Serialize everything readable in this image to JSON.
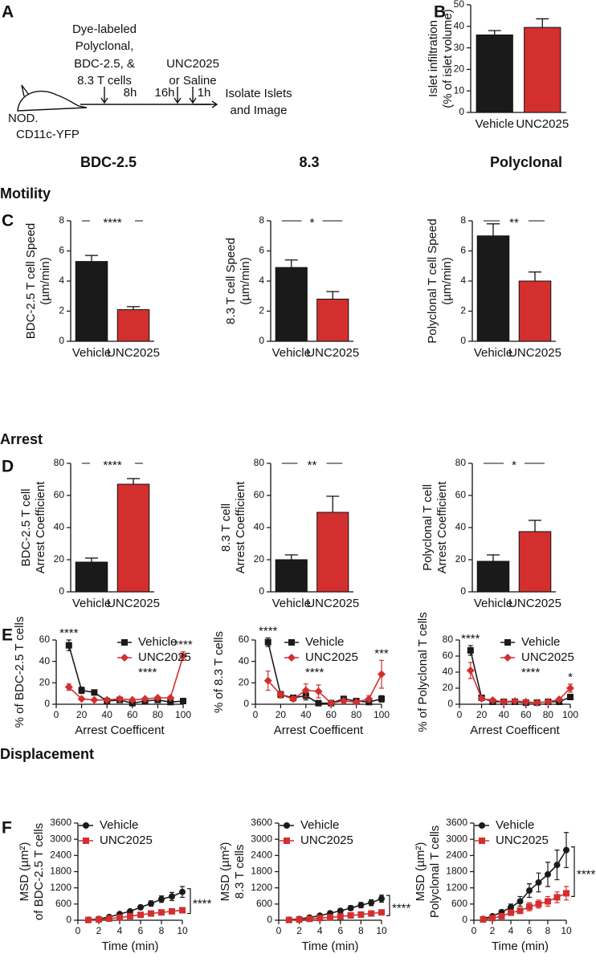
{
  "panel_labels": [
    "A",
    "B",
    "C",
    "D",
    "E",
    "F"
  ],
  "diagram": {
    "cells_label": [
      "Dye-labeled",
      "Polyclonal,",
      "BDC-2.5, &",
      "8.3 T cells"
    ],
    "treatment": [
      "UNC2025",
      "or Saline"
    ],
    "intervals": [
      "8h",
      "16h",
      "1h"
    ],
    "endpoint": [
      "Isolate Islets",
      "and Image"
    ],
    "mouse": [
      "NOD.",
      "CD11c-YFP"
    ]
  },
  "column_headers": [
    "BDC-2.5",
    "8.3",
    "Polyclonal"
  ],
  "section_labels": [
    "Motility",
    "Arrest",
    "Displacement"
  ],
  "chart_data": [
    {
      "type": "bar",
      "ylabel": [
        "Islet infiltration",
        "(% of islet volume)"
      ],
      "categories": [
        "Vehicle",
        "UNC2025"
      ],
      "values": [
        36,
        39.5
      ],
      "errors": [
        2,
        4
      ],
      "colors": [
        "#1a1a1a",
        "#d32f2f"
      ],
      "ylim": [
        0,
        50
      ],
      "yticks": [
        0,
        10,
        20,
        30,
        40,
        50
      ]
    },
    {
      "type": "bar",
      "ylabel": [
        "BDC-2.5 T cell Speed",
        "(µm/min)"
      ],
      "categories": [
        "Vehicle",
        "UNC2025"
      ],
      "values": [
        5.3,
        2.1
      ],
      "errors": [
        0.4,
        0.2
      ],
      "colors": [
        "#1a1a1a",
        "#d32f2f"
      ],
      "ylim": [
        0,
        8
      ],
      "yticks": [
        0,
        2,
        4,
        6,
        8
      ],
      "significance": "****"
    },
    {
      "type": "bar",
      "ylabel": [
        "8.3 T cell Speed",
        "(µm/min)"
      ],
      "categories": [
        "Vehicle",
        "UNC2025"
      ],
      "values": [
        4.9,
        2.8
      ],
      "errors": [
        0.5,
        0.5
      ],
      "colors": [
        "#1a1a1a",
        "#d32f2f"
      ],
      "ylim": [
        0,
        8
      ],
      "yticks": [
        0,
        2,
        4,
        6,
        8
      ],
      "significance": "*"
    },
    {
      "type": "bar",
      "ylabel": [
        "Polyclonal T cell Speed",
        "(µm/min)"
      ],
      "categories": [
        "Vehicle",
        "UNC2025"
      ],
      "values": [
        7.0,
        4.0
      ],
      "errors": [
        0.8,
        0.6
      ],
      "colors": [
        "#1a1a1a",
        "#d32f2f"
      ],
      "ylim": [
        0,
        8
      ],
      "yticks": [
        0,
        2,
        4,
        6,
        8
      ],
      "significance": "**"
    },
    {
      "type": "bar",
      "ylabel": [
        "BDC-2.5 T cell",
        "Arrest Coefficient"
      ],
      "categories": [
        "Vehicle",
        "UNC2025"
      ],
      "values": [
        18.5,
        67
      ],
      "errors": [
        2.5,
        3.5
      ],
      "colors": [
        "#1a1a1a",
        "#d32f2f"
      ],
      "ylim": [
        0,
        80
      ],
      "yticks": [
        0,
        20,
        40,
        60,
        80
      ],
      "significance": "****"
    },
    {
      "type": "bar",
      "ylabel": [
        "8.3 T cell",
        "Arrest Coefficient"
      ],
      "categories": [
        "Vehicle",
        "UNC2025"
      ],
      "values": [
        20,
        49.5
      ],
      "errors": [
        3,
        10
      ],
      "colors": [
        "#1a1a1a",
        "#d32f2f"
      ],
      "ylim": [
        0,
        80
      ],
      "yticks": [
        0,
        20,
        40,
        60,
        80
      ],
      "significance": "**"
    },
    {
      "type": "bar",
      "ylabel": [
        "Polyclonal T cell",
        "Arrest Coefficient"
      ],
      "categories": [
        "Vehicle",
        "UNC2025"
      ],
      "values": [
        19,
        37.5
      ],
      "errors": [
        4,
        7
      ],
      "colors": [
        "#1a1a1a",
        "#d32f2f"
      ],
      "ylim": [
        0,
        80
      ],
      "yticks": [
        0,
        20,
        40,
        60,
        80
      ],
      "significance": "*"
    },
    {
      "type": "line",
      "ylabel": [
        "% of BDC-2.5 T cells"
      ],
      "xlabel": "Arrest Coefficent",
      "x": [
        10,
        20,
        30,
        40,
        50,
        60,
        70,
        80,
        90,
        100
      ],
      "xlim": [
        0,
        100
      ],
      "xticks": [
        0,
        20,
        40,
        60,
        80,
        100
      ],
      "ylim": [
        0,
        60
      ],
      "yticks": [
        0,
        20,
        40,
        60
      ],
      "legend": "upper right",
      "series": [
        {
          "name": "Vehicle",
          "color": "#1a1a1a",
          "marker": "square",
          "values": [
            55,
            13,
            11,
            3,
            4,
            1,
            3,
            4,
            2,
            3
          ],
          "errors": [
            5,
            3,
            2,
            1,
            1,
            1,
            1,
            1,
            1,
            1
          ]
        },
        {
          "name": "UNC2025",
          "color": "#d32f2f",
          "marker": "diamond",
          "values": [
            16,
            5,
            4,
            4,
            5,
            4,
            5,
            6,
            6,
            45
          ],
          "errors": [
            3,
            1,
            1,
            1,
            1,
            1,
            1,
            1,
            1,
            4
          ]
        }
      ],
      "legend_note": {
        "text": "****",
        "color": "#d32f2f"
      },
      "annotations": [
        {
          "x": 10,
          "text": "****"
        },
        {
          "x": 100,
          "text": "****"
        }
      ]
    },
    {
      "type": "line",
      "ylabel": [
        "% of 8.3 T cells"
      ],
      "xlabel": "Arrest Coefficent",
      "x": [
        10,
        20,
        30,
        40,
        50,
        60,
        70,
        80,
        90,
        100
      ],
      "xlim": [
        0,
        100
      ],
      "xticks": [
        0,
        20,
        40,
        60,
        80,
        100
      ],
      "ylim": [
        0,
        60
      ],
      "yticks": [
        0,
        20,
        40,
        60
      ],
      "legend": "upper right",
      "series": [
        {
          "name": "Vehicle",
          "color": "#1a1a1a",
          "marker": "square",
          "values": [
            58,
            9,
            6,
            8,
            1,
            1,
            5,
            3,
            2,
            5
          ],
          "errors": [
            4,
            3,
            2,
            4,
            1,
            1,
            2,
            2,
            2,
            3
          ]
        },
        {
          "name": "UNC2025",
          "color": "#d32f2f",
          "marker": "diamond",
          "values": [
            22,
            9,
            5,
            13,
            12,
            1,
            3,
            2,
            5,
            28
          ],
          "errors": [
            9,
            3,
            2,
            6,
            6,
            1,
            2,
            1,
            3,
            13
          ]
        }
      ],
      "legend_note": {
        "text": "****",
        "color": "#d32f2f"
      },
      "annotations": [
        {
          "x": 10,
          "text": "****"
        },
        {
          "x": 100,
          "text": "***"
        }
      ]
    },
    {
      "type": "line",
      "ylabel": [
        "% of Polyclonal T cells"
      ],
      "xlabel": "Arrest Coefficent",
      "x": [
        10,
        20,
        30,
        40,
        50,
        60,
        70,
        80,
        90,
        100
      ],
      "xlim": [
        0,
        100
      ],
      "xticks": [
        0,
        20,
        40,
        60,
        80,
        100
      ],
      "ylim": [
        0,
        80
      ],
      "yticks": [
        0,
        20,
        40,
        60,
        80
      ],
      "legend": "upper right",
      "series": [
        {
          "name": "Vehicle",
          "color": "#1a1a1a",
          "marker": "square",
          "values": [
            67,
            8,
            3,
            3,
            3,
            2,
            2,
            3,
            3,
            9
          ],
          "errors": [
            6,
            2,
            1,
            1,
            1,
            1,
            1,
            1,
            1,
            2
          ]
        },
        {
          "name": "UNC2025",
          "color": "#d32f2f",
          "marker": "diamond",
          "values": [
            42,
            7,
            5,
            3,
            4,
            3,
            2,
            3,
            6,
            20
          ],
          "errors": [
            10,
            2,
            1,
            1,
            1,
            1,
            1,
            1,
            2,
            5
          ]
        }
      ],
      "legend_note": {
        "text": "****",
        "color": "#d32f2f"
      },
      "annotations": [
        {
          "x": 10,
          "text": "****"
        },
        {
          "x": 100,
          "text": "*"
        }
      ]
    },
    {
      "type": "line",
      "ylabel": [
        "MSD (µm²)",
        "of BDC-2.5 T cells"
      ],
      "xlabel": "Time (min)",
      "x": [
        1,
        2,
        3,
        4,
        5,
        6,
        7,
        8,
        9,
        10
      ],
      "xlim": [
        0,
        10
      ],
      "xticks": [
        0,
        2,
        4,
        6,
        8,
        10
      ],
      "ylim": [
        0,
        3600
      ],
      "yticks": [
        0,
        600,
        1200,
        1800,
        2400,
        3000,
        3600
      ],
      "legend": "upper left",
      "series": [
        {
          "name": "Vehicle",
          "color": "#1a1a1a",
          "marker": "circle",
          "values": [
            20,
            50,
            120,
            230,
            330,
            480,
            620,
            780,
            880,
            1050
          ],
          "errors": [
            10,
            15,
            25,
            40,
            60,
            80,
            100,
            120,
            150,
            200
          ]
        },
        {
          "name": "UNC2025",
          "color": "#d32f2f",
          "marker": "square",
          "values": [
            10,
            30,
            60,
            100,
            150,
            200,
            250,
            290,
            330,
            370
          ],
          "errors": [
            5,
            10,
            15,
            20,
            30,
            40,
            50,
            60,
            70,
            80
          ]
        }
      ],
      "significance": "****"
    },
    {
      "type": "line",
      "ylabel": [
        "MSD (µm²)",
        "8.3 T cells"
      ],
      "xlabel": "Time (min)",
      "x": [
        1,
        2,
        3,
        4,
        5,
        6,
        7,
        8,
        9,
        10
      ],
      "xlim": [
        0,
        10
      ],
      "xticks": [
        0,
        2,
        4,
        6,
        8,
        10
      ],
      "ylim": [
        0,
        3600
      ],
      "yticks": [
        0,
        600,
        1200,
        1800,
        2400,
        3000,
        3600
      ],
      "legend": "upper left",
      "series": [
        {
          "name": "Vehicle",
          "color": "#1a1a1a",
          "marker": "circle",
          "values": [
            20,
            50,
            100,
            170,
            260,
            350,
            450,
            560,
            650,
            800
          ],
          "errors": [
            10,
            15,
            25,
            40,
            50,
            70,
            90,
            100,
            110,
            130
          ]
        },
        {
          "name": "UNC2025",
          "color": "#d32f2f",
          "marker": "square",
          "values": [
            10,
            30,
            50,
            80,
            110,
            140,
            180,
            210,
            250,
            290
          ],
          "errors": [
            5,
            10,
            15,
            20,
            25,
            30,
            40,
            50,
            60,
            70
          ]
        }
      ],
      "significance": "****"
    },
    {
      "type": "line",
      "ylabel": [
        "MSD (µm²)",
        "Polyclonal T cells"
      ],
      "xlabel": "Time (min)",
      "x": [
        1,
        2,
        3,
        4,
        5,
        6,
        7,
        8,
        9,
        10
      ],
      "xlim": [
        0,
        10
      ],
      "xticks": [
        0,
        2,
        4,
        6,
        8,
        10
      ],
      "ylim": [
        0,
        3600
      ],
      "yticks": [
        0,
        600,
        1200,
        1800,
        2400,
        3000,
        3600
      ],
      "legend": "upper left",
      "series": [
        {
          "name": "Vehicle",
          "color": "#1a1a1a",
          "marker": "circle",
          "values": [
            50,
            150,
            300,
            480,
            700,
            1100,
            1400,
            1700,
            2050,
            2600
          ],
          "errors": [
            20,
            40,
            80,
            120,
            180,
            250,
            350,
            450,
            550,
            650
          ]
        },
        {
          "name": "UNC2025",
          "color": "#d32f2f",
          "marker": "square",
          "values": [
            30,
            80,
            150,
            280,
            350,
            500,
            600,
            700,
            850,
            1000
          ],
          "errors": [
            20,
            40,
            60,
            80,
            100,
            150,
            150,
            180,
            200,
            250
          ]
        }
      ],
      "significance": "****"
    }
  ]
}
